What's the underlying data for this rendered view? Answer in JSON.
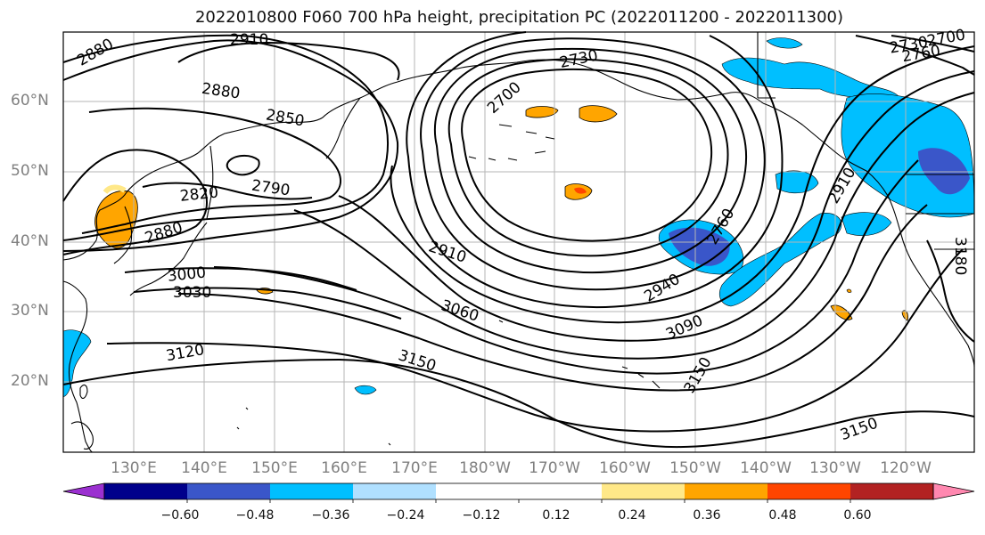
{
  "title": "2022010800 F060 700 hPa height, precipitation PC (2022011200 - 2022011300)",
  "lat_labels": [
    "60°N",
    "50°N",
    "40°N",
    "30°N",
    "20°N"
  ],
  "lon_labels": [
    "130°E",
    "140°E",
    "150°E",
    "160°E",
    "170°E",
    "180°W",
    "170°W",
    "160°W",
    "150°W",
    "140°W",
    "130°W",
    "120°W"
  ],
  "contour_labels": {
    "c2880a": "2880",
    "c2910a": "2910",
    "c2880b": "2880",
    "c2850": "2850",
    "c2820": "2820",
    "c2790": "2790",
    "c2880c": "2880",
    "c3000": "3000",
    "c3030": "3030",
    "c3120": "3120",
    "c2700": "2700",
    "c2730": "2730",
    "c2910b": "2910",
    "c3060": "3060",
    "c3150a": "3150",
    "c2940": "2940",
    "c2760": "2760",
    "c3090": "3090",
    "c3150b": "3150",
    "c3150c": "3150",
    "c2910c": "2910",
    "c3180": "3180",
    "c2730b": "2730",
    "c2700b": "2700",
    "c2760b": "2760"
  },
  "colorbar": {
    "colors": [
      "#9b30d0",
      "#00008b",
      "#3a56c9",
      "#00bfff",
      "#b0e0ff",
      "#ffffff",
      "#ffffff",
      "#ffe888",
      "#ffa500",
      "#ff4500",
      "#b22222",
      "#ff88b0"
    ],
    "tick_labels": [
      "−0.60",
      "−0.48",
      "−0.36",
      "−0.24",
      "−0.12",
      "0.12",
      "0.24",
      "0.36",
      "0.48",
      "0.60"
    ]
  }
}
